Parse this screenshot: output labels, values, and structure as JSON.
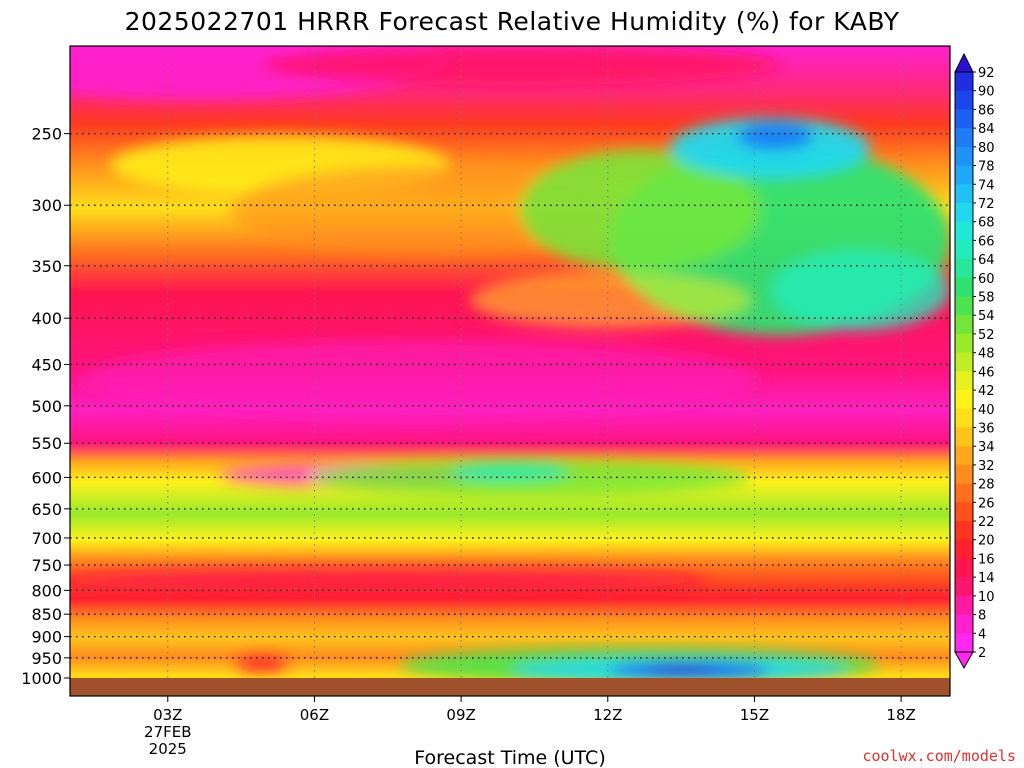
{
  "chart_data": {
    "type": "heatmap",
    "title": "2025022701 HRRR Forecast Relative Humidity (%) for KABY",
    "xlabel": "Forecast Time (UTC)",
    "ylabel": "",
    "x_ticks": [
      {
        "label": "03Z",
        "hour": 3,
        "sub": [
          "27FEB",
          "2025"
        ]
      },
      {
        "label": "06Z",
        "hour": 6
      },
      {
        "label": "09Z",
        "hour": 9
      },
      {
        "label": "12Z",
        "hour": 12
      },
      {
        "label": "15Z",
        "hour": 15
      },
      {
        "label": "18Z",
        "hour": 18
      }
    ],
    "xlim": [
      1,
      19
    ],
    "y_ticks": [
      250,
      300,
      350,
      400,
      450,
      500,
      550,
      600,
      650,
      700,
      750,
      800,
      850,
      900,
      950,
      1000
    ],
    "ylim": [
      200,
      1000
    ],
    "y_scale": "log",
    "grid": true,
    "colorbar": {
      "values": [
        92,
        90,
        86,
        84,
        80,
        78,
        74,
        72,
        68,
        66,
        64,
        60,
        58,
        54,
        52,
        48,
        46,
        42,
        40,
        36,
        34,
        32,
        28,
        26,
        22,
        20,
        16,
        14,
        10,
        8,
        4,
        2
      ],
      "colors": [
        "#2b10d6",
        "#1f2ee0",
        "#1a46ec",
        "#1d5ef4",
        "#1e7cf6",
        "#1f92f8",
        "#20a8f8",
        "#20c2f6",
        "#22d8ec",
        "#1ee8d8",
        "#22ecbc",
        "#26e898",
        "#2fe270",
        "#4be44e",
        "#74e63a",
        "#9aea2c",
        "#c0ee26",
        "#e4f21e",
        "#fff21a",
        "#ffde1a",
        "#ffc41c",
        "#ffa81e",
        "#ff8c1e",
        "#ff701e",
        "#ff501e",
        "#ff3420",
        "#ff2030",
        "#ff1450",
        "#ff1470",
        "#ff1aa0",
        "#ff20d0",
        "#ff28f0"
      ]
    },
    "ground": {
      "color": "#a0522d"
    },
    "credit": "coolwx.com/models"
  }
}
